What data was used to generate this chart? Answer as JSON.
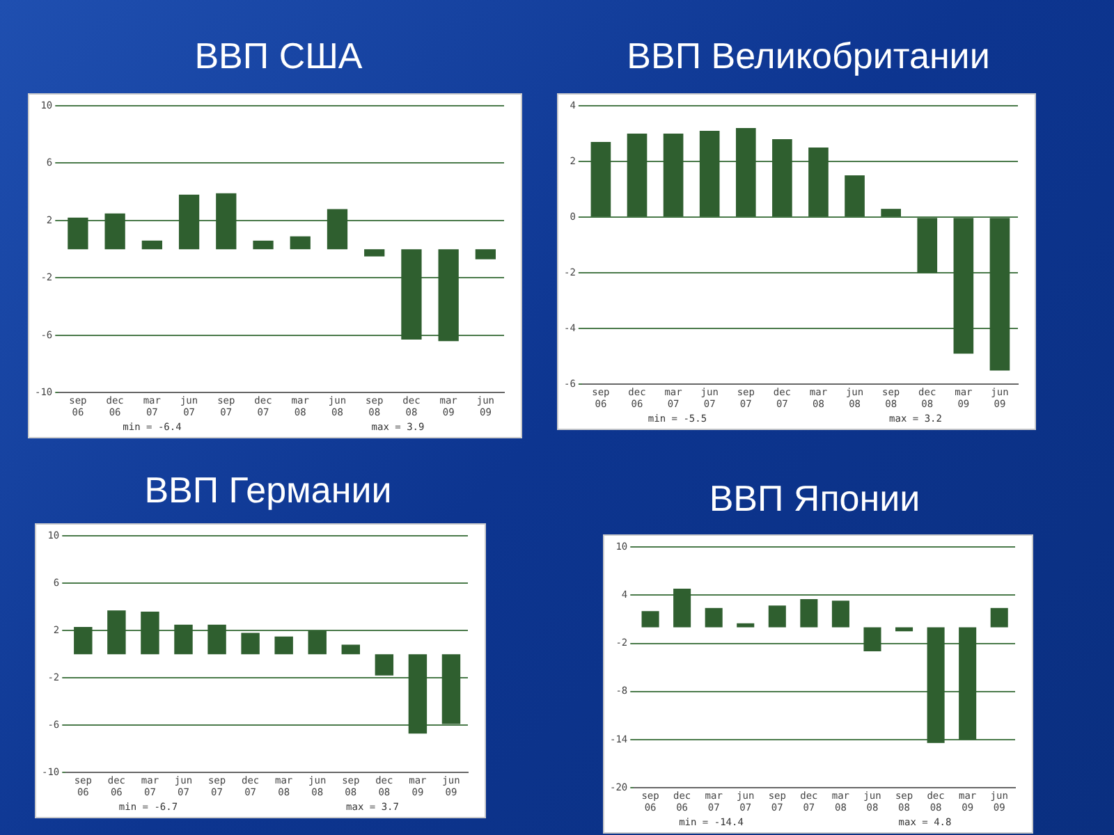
{
  "chart_data": [
    {
      "type": "bar",
      "title": "ВВП США",
      "categories": [
        "sep 06",
        "dec 06",
        "mar 07",
        "jun 07",
        "sep 07",
        "dec 07",
        "mar 08",
        "jun 08",
        "sep 08",
        "dec 08",
        "mar 09",
        "jun 09"
      ],
      "values": [
        2.2,
        2.5,
        0.6,
        3.8,
        3.9,
        0.6,
        0.9,
        2.8,
        -0.5,
        -6.3,
        -6.4,
        -0.7
      ],
      "color": "#2f5f2f",
      "ylim": [
        -10,
        10
      ],
      "yticks": [
        -10,
        -6,
        -2,
        2,
        6,
        10
      ],
      "grid": "y",
      "annotations": [
        "min = -6.4",
        "max = 3.9"
      ]
    },
    {
      "type": "bar",
      "title": "ВВП Великобритании",
      "categories": [
        "sep 06",
        "dec 06",
        "mar 07",
        "jun 07",
        "sep 07",
        "dec 07",
        "mar 08",
        "jun 08",
        "sep 08",
        "dec 08",
        "mar 09",
        "jun 09"
      ],
      "values": [
        2.7,
        3.0,
        3.0,
        3.1,
        3.2,
        2.8,
        2.5,
        1.5,
        0.3,
        -2.0,
        -4.9,
        -5.5
      ],
      "color": "#2f5f2f",
      "ylim": [
        -6,
        4
      ],
      "yticks": [
        -6,
        -4,
        -2,
        0,
        2,
        4
      ],
      "grid": "y",
      "annotations": [
        "min = -5.5",
        "max = 3.2"
      ]
    },
    {
      "type": "bar",
      "title": "ВВП Германии",
      "categories": [
        "sep 06",
        "dec 06",
        "mar 07",
        "jun 07",
        "sep 07",
        "dec 07",
        "mar 08",
        "jun 08",
        "sep 08",
        "dec 08",
        "mar 09",
        "jun 09"
      ],
      "values": [
        2.3,
        3.7,
        3.6,
        2.5,
        2.5,
        1.8,
        1.5,
        2.0,
        0.8,
        -1.8,
        -6.7,
        -5.9
      ],
      "color": "#2f5f2f",
      "ylim": [
        -10,
        10
      ],
      "yticks": [
        -10,
        -6,
        -2,
        2,
        6,
        10
      ],
      "grid": "y",
      "annotations": [
        "min = -6.7",
        "max = 3.7"
      ]
    },
    {
      "type": "bar",
      "title": "ВВП Японии",
      "categories": [
        "sep 06",
        "dec 06",
        "mar 07",
        "jun 07",
        "sep 07",
        "dec 07",
        "mar 08",
        "jun 08",
        "sep 08",
        "dec 08",
        "mar 09",
        "jun 09"
      ],
      "values": [
        2.0,
        4.8,
        2.4,
        0.5,
        2.7,
        3.5,
        3.3,
        -3.0,
        -0.5,
        -14.4,
        -14.0,
        2.4
      ],
      "color": "#2f5f2f",
      "ylim": [
        -20,
        10
      ],
      "yticks": [
        -20,
        -14,
        -8,
        -2,
        4,
        10
      ],
      "grid": "y",
      "annotations": [
        "min = -14.4",
        "max = 4.8"
      ]
    }
  ]
}
